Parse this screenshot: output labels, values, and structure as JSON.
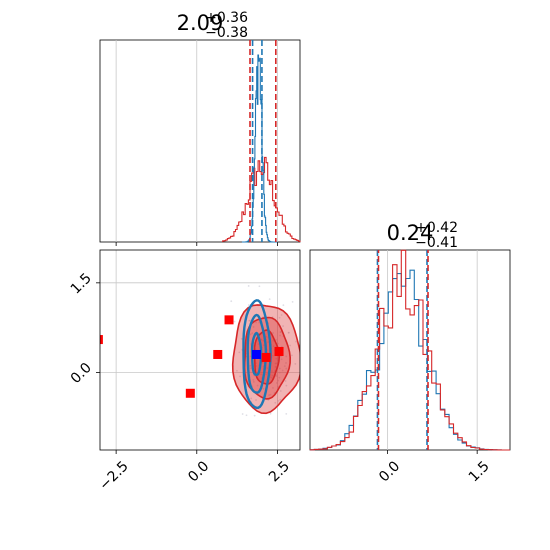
{
  "chart_data": {
    "type": "corner",
    "parameters": [
      {
        "title_value": "2.09",
        "title_plus": "+0.36",
        "title_minus": "−0.38"
      },
      {
        "title_value": "0.24",
        "title_plus": "+0.42",
        "title_minus": "−0.41"
      }
    ],
    "colors": {
      "blue": "#1f77b4",
      "red": "#d62728",
      "marker_red": "#ff0000",
      "marker_blue": "#0000ff"
    },
    "grid": true,
    "axes": {
      "x_param0": {
        "range": [
          -3.0,
          3.2
        ],
        "ticks": [
          -2.5,
          0.0,
          2.5
        ],
        "tick_labels": [
          "−2.5",
          "0.0",
          "2.5"
        ]
      },
      "y_param1": {
        "range": [
          -1.3,
          2.05
        ],
        "ticks": [
          0.0,
          1.5
        ],
        "tick_labels": [
          "0.0",
          "1.5"
        ]
      },
      "x_param1": {
        "range": [
          -1.3,
          2.05
        ],
        "ticks": [
          0.0,
          1.5
        ],
        "tick_labels": [
          "0.0",
          "1.5"
        ]
      }
    },
    "hist_param0": {
      "blue_quantiles": [
        1.73,
        2.02
      ],
      "red_quantiles": [
        1.65,
        2.45
      ],
      "blue_peak": 1.92,
      "blue_sigma": 0.1,
      "red_peak": 2.0,
      "red_sigma": 0.4
    },
    "hist_param1": {
      "blue_quantiles": [
        -0.17,
        0.66
      ],
      "red_quantiles": [
        -0.17,
        0.66
      ],
      "peak": 0.24,
      "sigma": 0.42
    },
    "markers_red": [
      {
        "x": -3.05,
        "y": 0.55
      },
      {
        "x": -0.2,
        "y": -0.35
      },
      {
        "x": 0.65,
        "y": 0.3
      },
      {
        "x": 1.0,
        "y": 0.88
      },
      {
        "x": 2.15,
        "y": 0.25
      },
      {
        "x": 2.55,
        "y": 0.35
      }
    ],
    "marker_blue": {
      "x": 1.85,
      "y": 0.3
    },
    "contours_red": [
      {
        "cx": 2.15,
        "cy": 0.25,
        "rx": 1.05,
        "ry": 0.9
      },
      {
        "cx": 2.15,
        "cy": 0.25,
        "rx": 0.7,
        "ry": 0.68
      },
      {
        "cx": 2.15,
        "cy": 0.25,
        "rx": 0.38,
        "ry": 0.45
      }
    ],
    "contours_blue": [
      {
        "cx": 1.85,
        "cy": 0.3,
        "rx": 0.42,
        "ry": 0.9
      },
      {
        "cx": 1.85,
        "cy": 0.3,
        "rx": 0.28,
        "ry": 0.65
      },
      {
        "cx": 1.85,
        "cy": 0.3,
        "rx": 0.14,
        "ry": 0.35
      }
    ]
  }
}
